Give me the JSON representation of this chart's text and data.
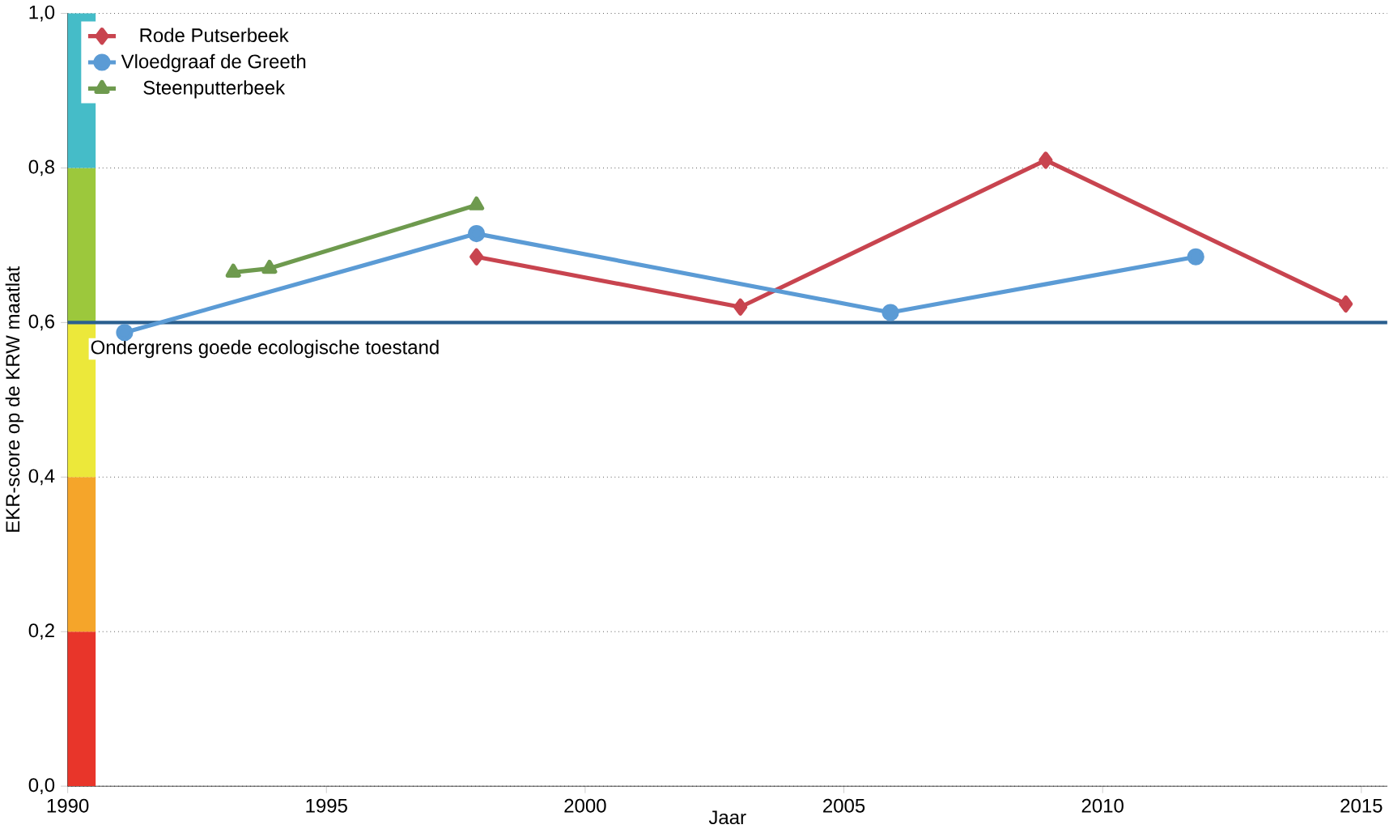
{
  "chart_data": {
    "type": "line",
    "xlabel": "Jaar",
    "ylabel": "EKR-score op de KRW maatlat",
    "xlim": [
      1990,
      2015.5
    ],
    "xticks": [
      1990,
      1995,
      2000,
      2005,
      2010,
      2015
    ],
    "ylim": [
      0,
      1
    ],
    "yticks": [
      {
        "value": 0,
        "label": "0,0"
      },
      {
        "value": 0.2,
        "label": "0,2"
      },
      {
        "value": 0.4,
        "label": "0,4"
      },
      {
        "value": 0.6,
        "label": "0,6"
      },
      {
        "value": 0.8,
        "label": "0,8"
      },
      {
        "value": 1,
        "label": "1,0"
      }
    ],
    "grid": "y",
    "legend": "top left",
    "series": [
      {
        "name": "Rode Putserbeek",
        "color": "#c8444f",
        "marker": "diamond",
        "x": [
          1997.9,
          2003.0,
          2008.9,
          2014.7
        ],
        "values": [
          0.685,
          0.62,
          0.81,
          0.624
        ]
      },
      {
        "name": "Vloedgraaf de Greeth",
        "color": "#5b9bd5",
        "marker": "circle",
        "x": [
          1991.1,
          1997.9,
          2005.9,
          2011.8
        ],
        "values": [
          0.587,
          0.715,
          0.613,
          0.685
        ]
      },
      {
        "name": "Steenputterbeek",
        "color": "#6e9a4e",
        "marker": "triangle",
        "x": [
          1993.2,
          1993.9,
          1997.9
        ],
        "values": [
          0.665,
          0.67,
          0.752
        ]
      },
      {
        "type": "bar",
        "color": "#e8352a",
        "x": [
          1990.27
        ],
        "values": [
          0.2
        ]
      },
      {
        "type": "bar",
        "color": "#f5a52a",
        "x": [
          1990.27
        ],
        "values": [
          0.2
        ]
      },
      {
        "type": "bar",
        "color": "#ece83a",
        "x": [
          1990.27
        ],
        "values": [
          0.2
        ]
      },
      {
        "type": "bar",
        "color": "#9cc83c",
        "x": [
          1990.27
        ],
        "values": [
          0.2
        ]
      },
      {
        "type": "bar",
        "color": "#45bcc8",
        "x": [
          1990.27
        ],
        "values": [
          0.2
        ]
      }
    ],
    "stacked": true,
    "ref_lines": [
      {
        "axis": "y",
        "value": 0.6,
        "label": "Ondergrens goede ecologische toestand",
        "color": "#2a5f8f"
      }
    ]
  }
}
